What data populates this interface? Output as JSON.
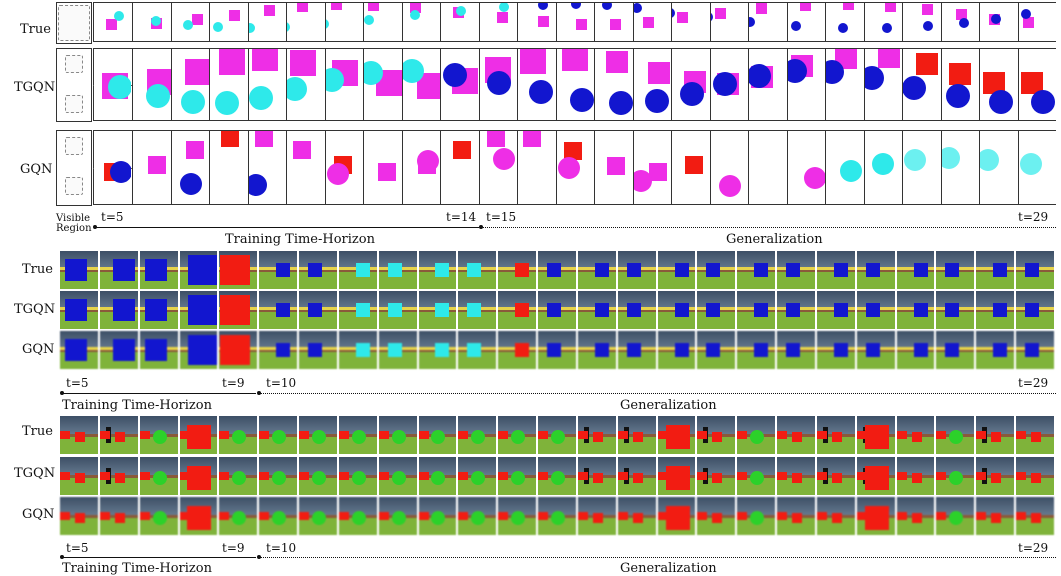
{
  "colors": {
    "magenta": "#ee2ee6",
    "cyan": "#2ee9ea",
    "blue": "#1216cf",
    "red": "#f21c12",
    "green": "#2cd12a"
  },
  "panel1": {
    "rows": [
      "True",
      "TGQN",
      "GQN"
    ],
    "visible_region_label": "Visible\nRegion",
    "ticks": {
      "start": "t=5",
      "train_end": "t=14",
      "gen_start": "t=15",
      "end": "t=29"
    },
    "training_label": "Training Time-Horizon",
    "generalization_label": "Generalization"
  },
  "panel2": {
    "rows": [
      "True",
      "TGQN",
      "GQN"
    ],
    "ticks": {
      "start": "t=5",
      "train_end": "t=9",
      "gen_start": "t=10",
      "end": "t=29"
    },
    "training_label": "Training Time-Horizon",
    "generalization_label": "Generalization"
  },
  "panel3": {
    "rows": [
      "True",
      "TGQN",
      "GQN"
    ],
    "ticks": {
      "start": "t=5",
      "train_end": "t=9",
      "gen_start": "t=10",
      "end": "t=29"
    },
    "training_label": "Training Time-Horizon",
    "generalization_label": "Generalization"
  }
}
